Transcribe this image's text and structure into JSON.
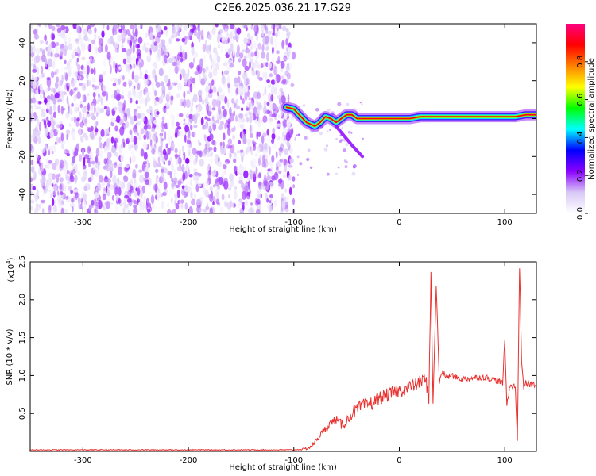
{
  "title": "C2E6.2025.036.21.17.G29",
  "chart_data": [
    {
      "type": "heatmap",
      "xlabel": "Height of straight line (km)",
      "ylabel": "Frequency (Hz)",
      "xlim": [
        -350,
        130
      ],
      "ylim": [
        -50,
        50
      ],
      "x_ticks": [
        -300,
        -200,
        -100,
        0,
        100
      ],
      "y_ticks": [
        -40,
        -20,
        0,
        20,
        40
      ],
      "colorbar": {
        "label": "Normalized spectral amplitude",
        "range": [
          0,
          1
        ],
        "ticks": [
          "0.0",
          "0.2",
          "0.4",
          "0.6",
          "0.8"
        ],
        "tick_values": [
          0,
          0.2,
          0.4,
          0.6,
          0.8
        ],
        "colors": [
          "#ffffff",
          "#d8c8f6",
          "#8b00ff",
          "#0000ff",
          "#00ffff",
          "#00ff00",
          "#ffff00",
          "#ff8000",
          "#ff0000",
          "#ff0080"
        ]
      },
      "noise_region": {
        "x": [
          -350,
          -100
        ],
        "y": [
          -50,
          50
        ],
        "level": 0.2
      },
      "signal_ridge": [
        {
          "x": -107,
          "y": 6
        },
        {
          "x": -100,
          "y": 5
        },
        {
          "x": -95,
          "y": 2
        },
        {
          "x": -88,
          "y": -2
        },
        {
          "x": -80,
          "y": -4
        },
        {
          "x": -75,
          "y": -2
        },
        {
          "x": -70,
          "y": 1
        },
        {
          "x": -65,
          "y": 0
        },
        {
          "x": -60,
          "y": -2
        },
        {
          "x": -55,
          "y": 0
        },
        {
          "x": -50,
          "y": 2
        },
        {
          "x": -45,
          "y": 2
        },
        {
          "x": -40,
          "y": 0
        },
        {
          "x": -30,
          "y": 0
        },
        {
          "x": -20,
          "y": 0
        },
        {
          "x": -10,
          "y": 0
        },
        {
          "x": 0,
          "y": 0
        },
        {
          "x": 10,
          "y": 0
        },
        {
          "x": 20,
          "y": 1
        },
        {
          "x": 30,
          "y": 1
        },
        {
          "x": 40,
          "y": 1
        },
        {
          "x": 50,
          "y": 1
        },
        {
          "x": 60,
          "y": 1
        },
        {
          "x": 70,
          "y": 1
        },
        {
          "x": 80,
          "y": 1
        },
        {
          "x": 90,
          "y": 1
        },
        {
          "x": 100,
          "y": 1
        },
        {
          "x": 110,
          "y": 1
        },
        {
          "x": 120,
          "y": 2
        },
        {
          "x": 130,
          "y": 2
        }
      ]
    },
    {
      "type": "line",
      "xlabel": "Height of straight line (km)",
      "ylabel": "SNR (10 * v/v)",
      "y_multiplier": "(x10",
      "y_multiplier_exp": "4",
      "y_multiplier_close": ")",
      "xlim": [
        -350,
        130
      ],
      "ylim": [
        0,
        2.5
      ],
      "x_ticks": [
        -300,
        -200,
        -100,
        0,
        100
      ],
      "y_ticks": [
        0.5,
        1.0,
        1.5,
        2.0,
        2.5
      ],
      "y_tick_labels": [
        "0.5",
        "1.0",
        "1.5",
        "2.0",
        "2.5"
      ],
      "line_color": "#e8302e",
      "series": [
        {
          "x": [
            -350,
            -300,
            -200,
            -120,
            -100,
            -90,
            -85,
            -80,
            -75,
            -70,
            -65,
            -60,
            -55,
            -50,
            -45,
            -40,
            -35,
            -30,
            -25,
            -20,
            -15,
            -10,
            -5,
            0,
            5,
            10,
            15,
            20,
            25,
            28,
            30,
            32,
            35,
            38,
            40,
            45,
            50,
            60,
            70,
            80,
            90,
            98,
            100,
            102,
            105,
            110,
            112,
            114,
            116,
            118,
            120,
            125,
            130
          ],
          "y": [
            0.02,
            0.02,
            0.02,
            0.02,
            0.02,
            0.03,
            0.05,
            0.12,
            0.22,
            0.3,
            0.38,
            0.42,
            0.35,
            0.4,
            0.5,
            0.55,
            0.6,
            0.62,
            0.64,
            0.7,
            0.72,
            0.75,
            0.78,
            0.8,
            0.82,
            0.85,
            0.88,
            0.92,
            0.95,
            0.7,
            2.35,
            0.6,
            2.2,
            0.9,
            1.05,
            0.98,
            1.0,
            0.95,
            0.97,
            0.98,
            0.95,
            0.9,
            1.45,
            0.6,
            0.88,
            0.85,
            0.15,
            2.45,
            1.2,
            0.85,
            0.9,
            0.88,
            0.88
          ]
        }
      ]
    }
  ]
}
